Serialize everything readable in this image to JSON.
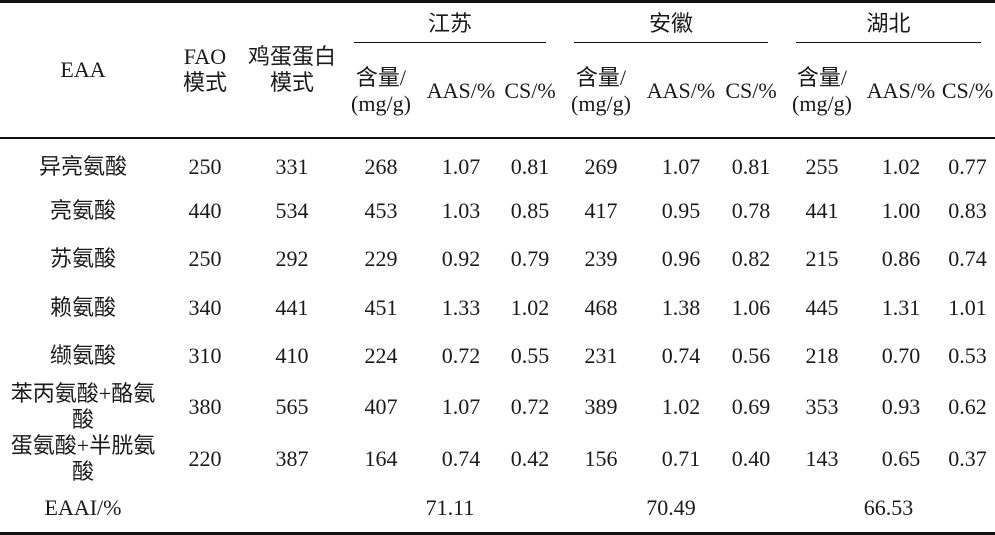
{
  "header": {
    "eaa": "EAA",
    "fao_line1": "FAO",
    "fao_line2": "模式",
    "egg_line1": "鸡蛋蛋白",
    "egg_line2": "模式",
    "provinces": [
      "江苏",
      "安徽",
      "湖北"
    ],
    "sub_content_line1": "含量/",
    "sub_content_line2": "(mg/g)",
    "sub_aas": "AAS/%",
    "sub_cs": "CS/%"
  },
  "rows": [
    {
      "name": "异亮氨酸",
      "fao": "250",
      "egg": "331",
      "js": [
        "268",
        "1.07",
        "0.81"
      ],
      "ah": [
        "269",
        "1.07",
        "0.81"
      ],
      "hb": [
        "255",
        "1.02",
        "0.77"
      ]
    },
    {
      "name": "亮氨酸",
      "fao": "440",
      "egg": "534",
      "js": [
        "453",
        "1.03",
        "0.85"
      ],
      "ah": [
        "417",
        "0.95",
        "0.78"
      ],
      "hb": [
        "441",
        "1.00",
        "0.83"
      ]
    },
    {
      "name": "苏氨酸",
      "fao": "250",
      "egg": "292",
      "js": [
        "229",
        "0.92",
        "0.79"
      ],
      "ah": [
        "239",
        "0.96",
        "0.82"
      ],
      "hb": [
        "215",
        "0.86",
        "0.74"
      ]
    },
    {
      "name": "赖氨酸",
      "fao": "340",
      "egg": "441",
      "js": [
        "451",
        "1.33",
        "1.02"
      ],
      "ah": [
        "468",
        "1.38",
        "1.06"
      ],
      "hb": [
        "445",
        "1.31",
        "1.01"
      ]
    },
    {
      "name": "缬氨酸",
      "fao": "310",
      "egg": "410",
      "js": [
        "224",
        "0.72",
        "0.55"
      ],
      "ah": [
        "231",
        "0.74",
        "0.56"
      ],
      "hb": [
        "218",
        "0.70",
        "0.53"
      ]
    },
    {
      "name": "苯丙氨酸+酪氨酸",
      "fao": "380",
      "egg": "565",
      "js": [
        "407",
        "1.07",
        "0.72"
      ],
      "ah": [
        "389",
        "1.02",
        "0.69"
      ],
      "hb": [
        "353",
        "0.93",
        "0.62"
      ]
    },
    {
      "name": "蛋氨酸+半胱氨酸",
      "fao": "220",
      "egg": "387",
      "js": [
        "164",
        "0.74",
        "0.42"
      ],
      "ah": [
        "156",
        "0.71",
        "0.40"
      ],
      "hb": [
        "143",
        "0.65",
        "0.37"
      ]
    }
  ],
  "eaai": {
    "label": "EAAI/%",
    "values": [
      "71.11",
      "70.49",
      "66.53"
    ]
  }
}
